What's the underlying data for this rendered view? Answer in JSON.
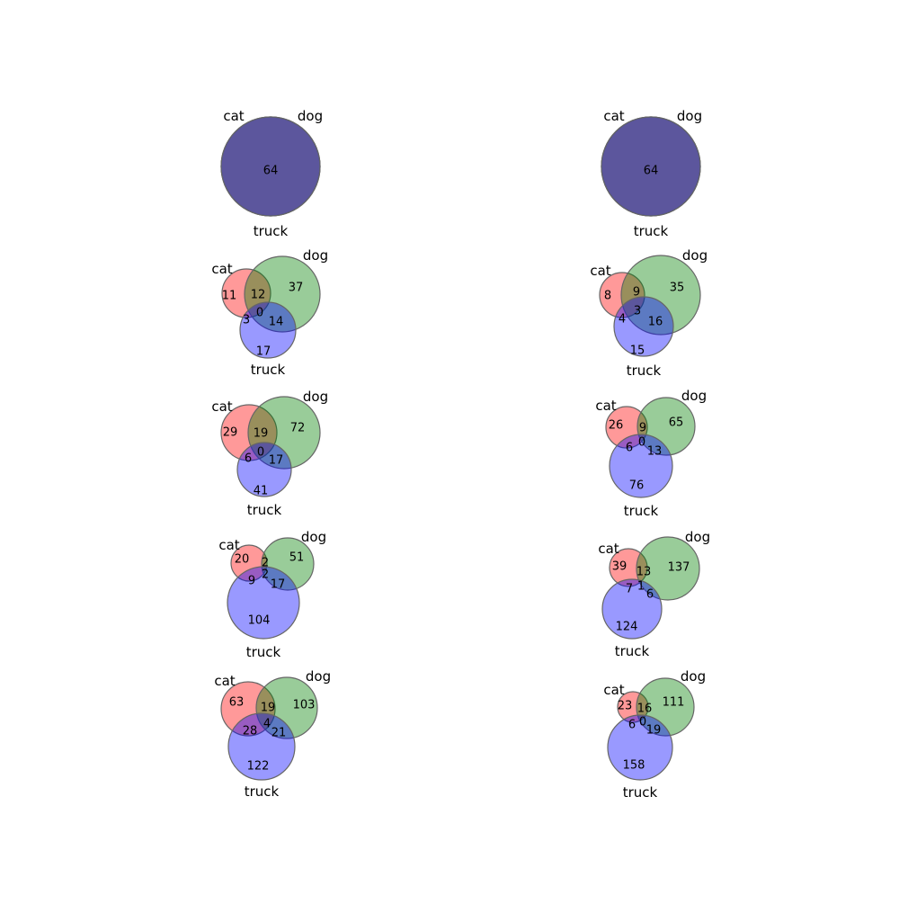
{
  "colors": {
    "cat": "#ff0000",
    "dog": "#008000",
    "truck": "#0000ff",
    "outline": "#666666"
  },
  "set_names": [
    "cat",
    "dog",
    "truck"
  ],
  "region_order": [
    "100",
    "010",
    "110",
    "001",
    "101",
    "011",
    "111"
  ],
  "diagrams": [
    {
      "regions": {
        "100": 0,
        "010": 0,
        "110": 0,
        "001": 0,
        "101": 0,
        "011": 0,
        "111": 64
      }
    },
    {
      "regions": {
        "100": 0,
        "010": 0,
        "110": 0,
        "001": 0,
        "101": 0,
        "011": 0,
        "111": 64
      }
    },
    {
      "regions": {
        "100": 11,
        "010": 37,
        "110": 12,
        "001": 17,
        "101": 3,
        "011": 14,
        "111": 0
      }
    },
    {
      "regions": {
        "100": 8,
        "010": 35,
        "110": 9,
        "001": 15,
        "101": 4,
        "011": 16,
        "111": 3
      }
    },
    {
      "regions": {
        "100": 29,
        "010": 72,
        "110": 19,
        "001": 41,
        "101": 6,
        "011": 17,
        "111": 0
      }
    },
    {
      "regions": {
        "100": 26,
        "010": 65,
        "110": 9,
        "001": 76,
        "101": 6,
        "011": 13,
        "111": 0
      }
    },
    {
      "regions": {
        "100": 20,
        "010": 51,
        "110": 2,
        "001": 104,
        "101": 9,
        "011": 17,
        "111": 2
      }
    },
    {
      "regions": {
        "100": 39,
        "010": 137,
        "110": 13,
        "001": 124,
        "101": 7,
        "011": 6,
        "111": 1
      }
    },
    {
      "regions": {
        "100": 63,
        "010": 103,
        "110": 19,
        "001": 122,
        "101": 28,
        "011": 21,
        "111": 4
      }
    },
    {
      "regions": {
        "100": 23,
        "010": 111,
        "110": 16,
        "001": 158,
        "101": 6,
        "011": 19,
        "111": 0
      }
    }
  ]
}
